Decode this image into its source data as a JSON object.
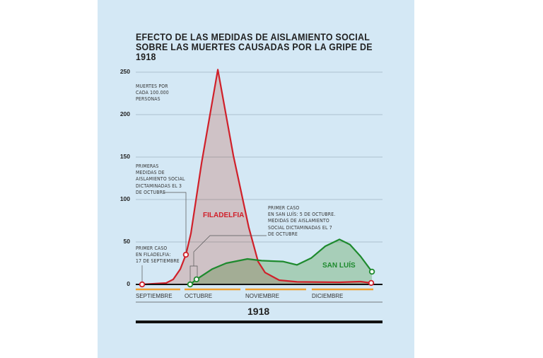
{
  "chart_data": {
    "type": "area",
    "title": "EFECTO DE LAS MEDIDAS DE AISLAMIENTO SOCIAL SOBRE LAS MUERTES CAUSADAS POR LA GRIPE DE 1918",
    "ylabel": "MUERTES POR CADA 100.000 PERSONAS",
    "xlabel": "1918",
    "ylim": [
      0,
      250
    ],
    "yticks": [
      "0",
      "50",
      "100",
      "150",
      "200",
      "250"
    ],
    "ytick_values": [
      0,
      50,
      100,
      150,
      200,
      250
    ],
    "x_unit": "weeks from 17 September 1918 (approx.)",
    "months": [
      {
        "label": "SEPTIEMBRE",
        "start": -0.42,
        "end": 2.51
      },
      {
        "label": "OCTUBRE",
        "start": 2.79,
        "end": 6.47
      },
      {
        "label": "NOVIEMBRE",
        "start": 6.79,
        "end": 10.79
      },
      {
        "label": "DICIEMBRE",
        "start": 11.16,
        "end": 15.21
      }
    ],
    "series": [
      {
        "name": "FILADELFIA",
        "color": "#d0202a",
        "fill": "#f8cfc6",
        "points": [
          [
            0,
            0
          ],
          [
            1.58,
            1.7
          ],
          [
            2.05,
            6
          ],
          [
            2.51,
            18
          ],
          [
            2.88,
            35
          ],
          [
            3.21,
            60
          ],
          [
            3.91,
            143
          ],
          [
            4.98,
            253
          ],
          [
            6.0,
            152
          ],
          [
            7.02,
            67
          ],
          [
            7.63,
            27
          ],
          [
            8.09,
            14
          ],
          [
            9.02,
            5
          ],
          [
            10.19,
            3
          ],
          [
            12.98,
            2.5
          ],
          [
            14.37,
            3.3
          ],
          [
            15.07,
            1.7
          ]
        ],
        "markers": [
          0,
          4,
          16
        ]
      },
      {
        "name": "SAN LUÍS",
        "color": "#1e8a2e",
        "fill": "#c9e3c0",
        "points": [
          [
            3.16,
            0
          ],
          [
            3.58,
            6
          ],
          [
            4.6,
            18
          ],
          [
            5.53,
            25
          ],
          [
            6.93,
            30
          ],
          [
            7.86,
            28
          ],
          [
            9.26,
            27
          ],
          [
            10.19,
            23
          ],
          [
            11.12,
            31
          ],
          [
            12.05,
            45
          ],
          [
            12.98,
            53
          ],
          [
            13.67,
            47
          ],
          [
            14.37,
            33
          ],
          [
            15.12,
            15
          ]
        ],
        "markers": [
          0,
          1,
          13
        ]
      }
    ],
    "annotations": {
      "unit": "MUERTES POR\nCADA 100.000\nPERSONAS",
      "first_measures_phila": "PRIMERAS\nMEDIDAS DE\nAISLAMIENTO SOCIAL\nDICTAMINADAS EL 3\nDE OCTUBRE",
      "first_case_phila": "PRIMER CASO\nEN FILADELFIA:\n17 DE SEPTIEMBRE",
      "san_luis": "PRIMER CASO\nEN SAN LUÍS: 5 DE OCTUBRE.\nMEDIDAS DE AISLAMIENTO\nSOCIAL DICTAMINADAS EL 7\nDE OCTUBRE"
    },
    "colors": {
      "background": "#d4e8f5",
      "grid": "#9fb3c2",
      "month_bar": "#f0a030",
      "axis": "#111111"
    }
  }
}
